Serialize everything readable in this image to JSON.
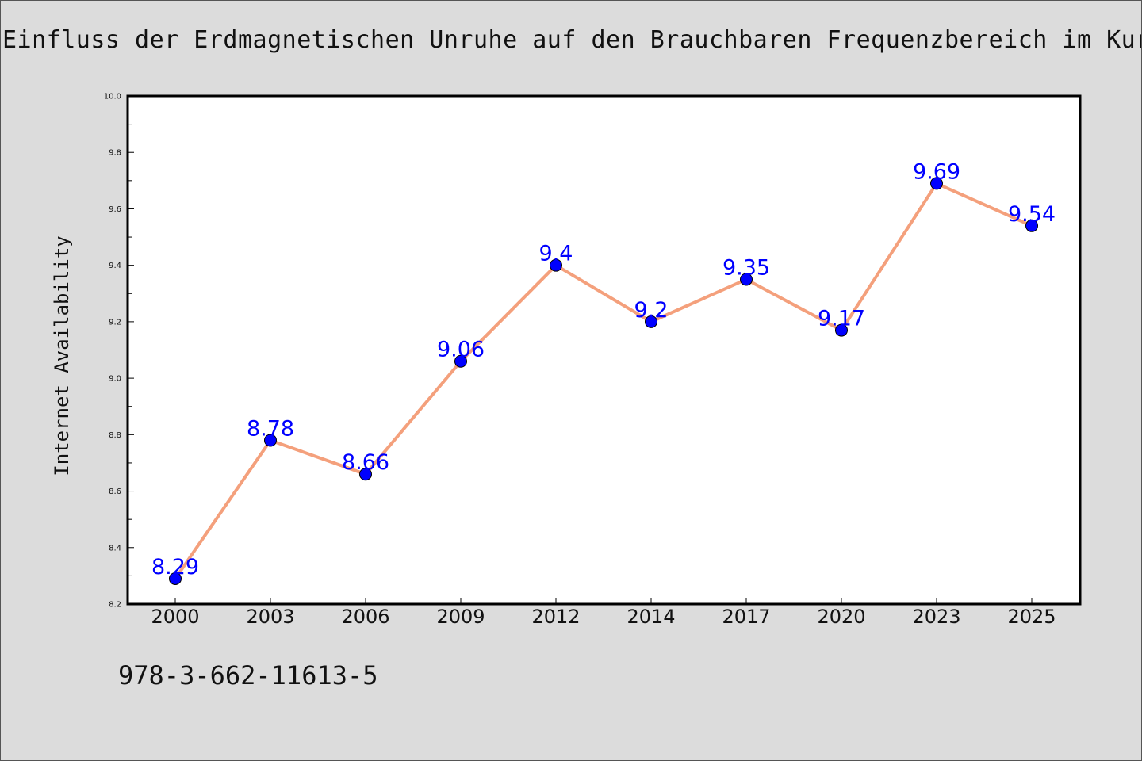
{
  "chart_data": {
    "type": "line",
    "title": "Einfluss der Erdmagnetischen Unruhe auf den Brauchbaren Frequenzbereich im Kurzw",
    "xlabel": "",
    "ylabel": "Internet Availability",
    "categories": [
      "2000",
      "2003",
      "2006",
      "2009",
      "2012",
      "2014",
      "2017",
      "2020",
      "2023",
      "2025"
    ],
    "series": [
      {
        "values": [
          8.29,
          8.78,
          8.66,
          9.06,
          9.4,
          9.2,
          9.35,
          9.17,
          9.69,
          9.54
        ]
      }
    ],
    "data_labels": [
      "8.29",
      "8.78",
      "8.66",
      "9.06",
      "9.4",
      "9.2",
      "9.35",
      "9.17",
      "9.69",
      "9.54"
    ],
    "ylim": [
      8.2,
      10.0
    ],
    "yticks": [
      "8.2",
      "8.4",
      "8.6",
      "8.8",
      "9.0",
      "9.2",
      "9.4",
      "9.6",
      "9.8",
      "10.0"
    ],
    "grid": false,
    "legend": "none",
    "colors": {
      "line": "#f4a07c",
      "marker": "#0000ff",
      "label": "#0000ff",
      "background": "#dcdcdc",
      "plot_bg": "#ffffff"
    }
  },
  "footnote": "978-3-662-11613-5"
}
